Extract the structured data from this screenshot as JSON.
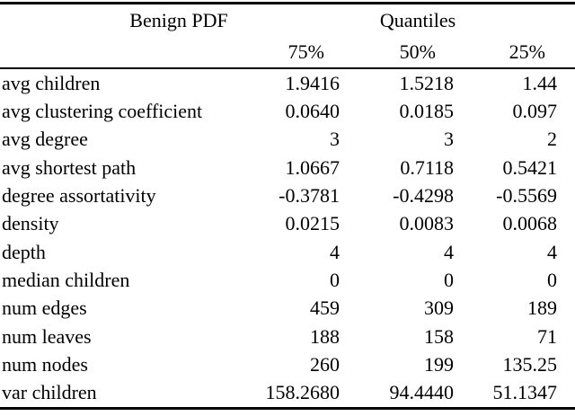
{
  "table": {
    "group_headers": {
      "left": "Benign PDF",
      "right": "Quantiles"
    },
    "columns": [
      "75%",
      "50%",
      "25%"
    ],
    "rows": [
      {
        "metric": "avg children",
        "values": [
          "1.9416",
          "1.5218",
          "1.44"
        ]
      },
      {
        "metric": "avg clustering coefficient",
        "values": [
          "0.0640",
          "0.0185",
          "0.097"
        ]
      },
      {
        "metric": "avg degree",
        "values": [
          "3",
          "3",
          "2"
        ]
      },
      {
        "metric": "avg shortest path",
        "values": [
          "1.0667",
          "0.7118",
          "0.5421"
        ]
      },
      {
        "metric": "degree assortativity",
        "values": [
          "-0.3781",
          "-0.4298",
          "-0.5569"
        ]
      },
      {
        "metric": "density",
        "values": [
          "0.0215",
          "0.0083",
          "0.0068"
        ]
      },
      {
        "metric": "depth",
        "values": [
          "4",
          "4",
          "4"
        ]
      },
      {
        "metric": "median children",
        "values": [
          "0",
          "0",
          "0"
        ]
      },
      {
        "metric": "num edges",
        "values": [
          "459",
          "309",
          "189"
        ]
      },
      {
        "metric": "num leaves",
        "values": [
          "188",
          "158",
          "71"
        ]
      },
      {
        "metric": "num nodes",
        "values": [
          "260",
          "199",
          "135.25"
        ]
      },
      {
        "metric": "var children",
        "values": [
          "158.2680",
          "94.4440",
          "51.1347"
        ]
      }
    ],
    "colors": {
      "text": "#000000",
      "rule": "#000000",
      "background": "#ffffff"
    }
  }
}
